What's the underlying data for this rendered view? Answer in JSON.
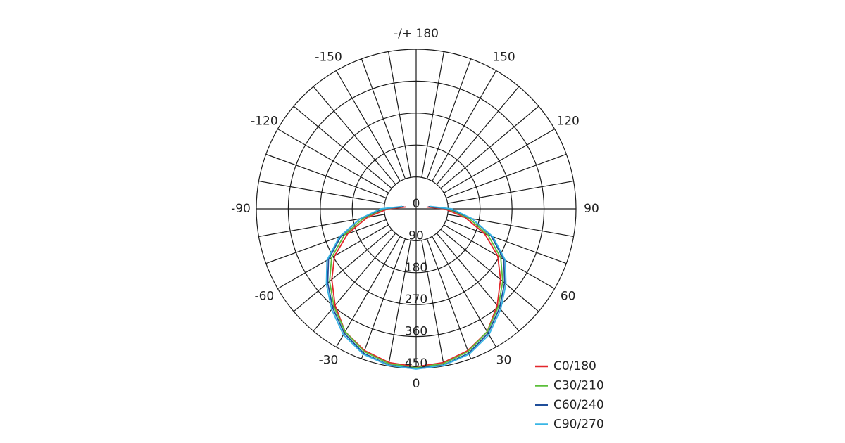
{
  "chart_data": {
    "type": "polar",
    "angles": [
      -100,
      -90,
      -80,
      -70,
      -60,
      -50,
      -40,
      -30,
      -20,
      -10,
      0,
      10,
      20,
      30,
      40,
      50,
      60,
      70,
      80,
      90,
      100
    ],
    "rlim": [
      0,
      450
    ],
    "rticks": [
      0,
      90,
      180,
      270,
      360,
      450
    ],
    "angle_ticks": [
      -150,
      -120,
      -90,
      -60,
      -30,
      0,
      30,
      60,
      90,
      120,
      150,
      {
        "value": 180,
        "label": "-/+ 180"
      }
    ],
    "series": [
      {
        "name": "C0/180",
        "color": "#e3262b",
        "values": [
          30,
          80,
          140,
          205,
          265,
          310,
          355,
          400,
          425,
          440,
          445,
          440,
          425,
          400,
          355,
          310,
          265,
          205,
          140,
          80,
          30
        ]
      },
      {
        "name": "C30/210",
        "color": "#5bbf3a",
        "values": [
          35,
          90,
          150,
          215,
          275,
          318,
          360,
          400,
          428,
          443,
          448,
          443,
          428,
          400,
          360,
          318,
          275,
          215,
          150,
          90,
          35
        ]
      },
      {
        "name": "C60/240",
        "color": "#1f4e9a",
        "values": [
          35,
          95,
          160,
          225,
          285,
          325,
          365,
          405,
          433,
          447,
          450,
          447,
          433,
          405,
          365,
          325,
          285,
          225,
          160,
          95,
          35
        ]
      },
      {
        "name": "C90/270",
        "color": "#39b6e5",
        "values": [
          40,
          100,
          160,
          230,
          290,
          330,
          370,
          410,
          436,
          448,
          452,
          448,
          436,
          410,
          370,
          330,
          290,
          230,
          160,
          100,
          40
        ]
      }
    ]
  }
}
